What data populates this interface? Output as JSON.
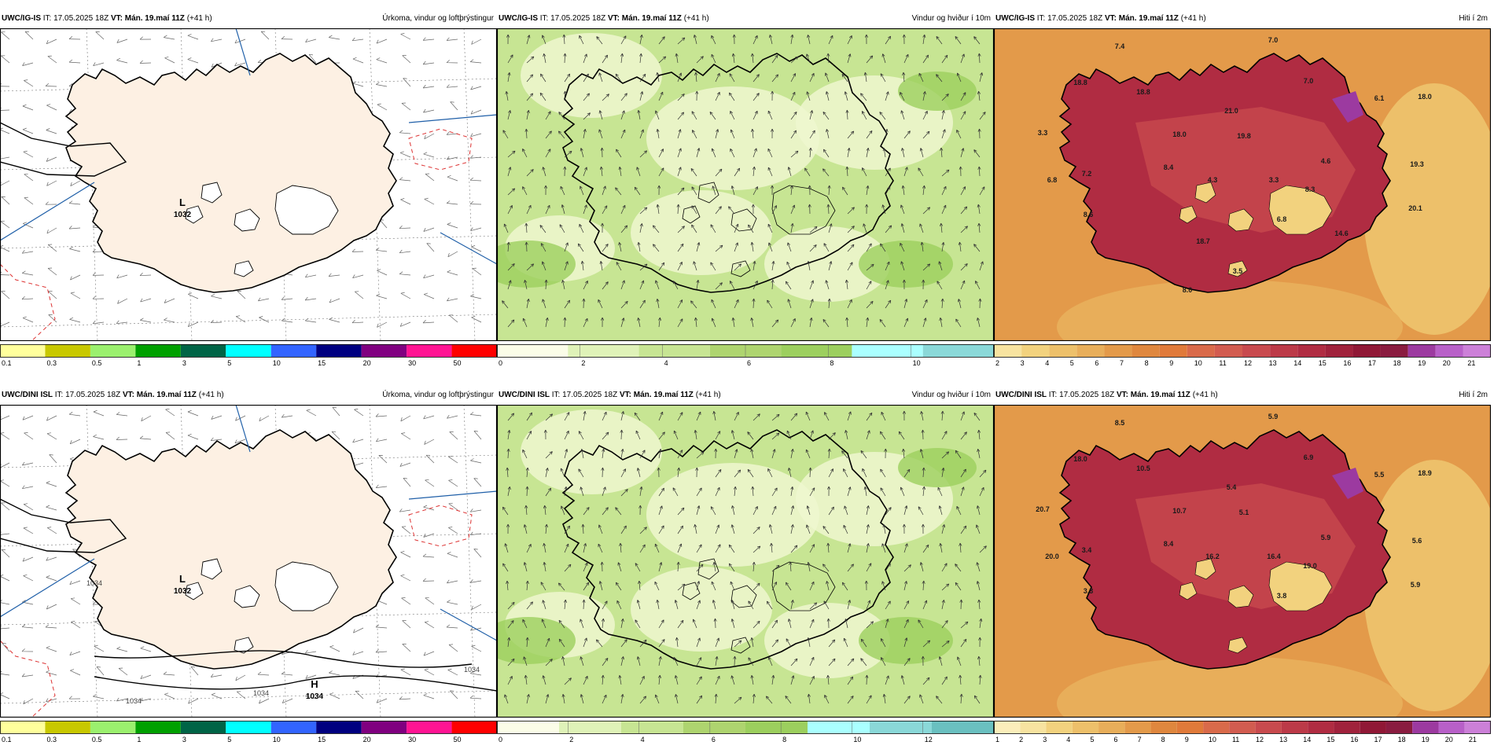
{
  "rows": [
    {
      "model": "UWC/IG-IS",
      "panels": [
        {
          "kind": "precip",
          "model": "UWC/IG-IS",
          "it_label": "IT: 17.05.2025 18Z",
          "vt_label": "VT: Mán. 19.maí 11Z",
          "lead": "(+41 h)",
          "field": "Úrkoma, vindur og loftþrýstingur",
          "pressure_center": {
            "letter": "L",
            "value": "1032"
          },
          "pressure_center2": null,
          "colorbar": {
            "colors": [
              "#ffff9c",
              "#c8c800",
              "#9bf06e",
              "#00a000",
              "#006446",
              "#00ffff",
              "#3264ff",
              "#000080",
              "#800080",
              "#ff1493",
              "#ff0000"
            ],
            "ticks": [
              "0.1",
              "0.3",
              "0.5",
              "1",
              "3",
              "5",
              "10",
              "15",
              "20",
              "30",
              "50"
            ]
          }
        },
        {
          "kind": "wind",
          "model": "UWC/IG-IS",
          "it_label": "IT: 17.05.2025 18Z",
          "vt_label": "VT: Mán. 19.maí 11Z",
          "lead": "(+41 h)",
          "field": "Vindur og hviður í 10m",
          "colorbar": {
            "colors": [
              "#fbfde8",
              "#dff2b8",
              "#c7e593",
              "#aed46f",
              "#9ccf5e",
              "#aaffff",
              "#8ad8d8"
            ],
            "ticks": [
              "0",
              "2",
              "4",
              "6",
              "8",
              "10"
            ],
            "tick_positions": [
              0,
              2,
              4,
              6,
              8,
              10
            ],
            "max": 12
          }
        },
        {
          "kind": "temp",
          "model": "UWC/IG-IS",
          "it_label": "IT: 17.05.2025 18Z",
          "vt_label": "VT: Mán. 19.maí 11Z",
          "lead": "(+41 h)",
          "field": "Hiti í 2m",
          "colorbar": {
            "colors": [
              "#f7e3a0",
              "#f2d27e",
              "#edc06a",
              "#e8ae5a",
              "#e39a4a",
              "#df873e",
              "#e07a3a",
              "#d96a4a",
              "#d25c50",
              "#c84a4e",
              "#bc3a48",
              "#b02c42",
              "#a0223c",
              "#901836",
              "#8a1c40",
              "#9c3aa0",
              "#b860c8",
              "#cc80d8"
            ],
            "ticks": [
              "2",
              "3",
              "4",
              "5",
              "6",
              "7",
              "8",
              "9",
              "10",
              "11",
              "12",
              "13",
              "14",
              "15",
              "16",
              "17",
              "18",
              "19",
              "20",
              "21"
            ]
          },
          "labels": [
            "7.0",
            "7.4",
            "18.8",
            "18.8",
            "7.0",
            "6.1",
            "18.0",
            "3.3",
            "18.0",
            "19.8",
            "21.0",
            "4.6",
            "19.3",
            "6.8",
            "7.2",
            "8.4",
            "4.3",
            "3.3",
            "8.3",
            "20.1",
            "8.6",
            "6.8",
            "14.6",
            "18.7",
            "3.5",
            "8.0"
          ]
        }
      ]
    },
    {
      "model": "UWC/DINI ISL",
      "panels": [
        {
          "kind": "precip",
          "model": "UWC/DINI ISL",
          "it_label": "IT: 17.05.2025 18Z",
          "vt_label": "VT: Mán. 19.maí 11Z",
          "lead": "(+41 h)",
          "field": "Úrkoma, vindur og loftþrýstingur",
          "pressure_center": {
            "letter": "L",
            "value": "1032"
          },
          "pressure_center2": {
            "letter": "H",
            "value": "1034"
          },
          "isobar_labels": [
            "1034",
            "1034",
            "1034",
            "1034"
          ],
          "colorbar": {
            "colors": [
              "#ffff9c",
              "#c8c800",
              "#9bf06e",
              "#00a000",
              "#006446",
              "#00ffff",
              "#3264ff",
              "#000080",
              "#800080",
              "#ff1493",
              "#ff0000"
            ],
            "ticks": [
              "0.1",
              "0.3",
              "0.5",
              "1",
              "3",
              "5",
              "10",
              "15",
              "20",
              "30",
              "50"
            ]
          }
        },
        {
          "kind": "wind",
          "model": "UWC/DINI ISL",
          "it_label": "IT: 17.05.2025 18Z",
          "vt_label": "VT: Mán. 19.maí 11Z",
          "lead": "(+41 h)",
          "field": "Vindur og hviður í 10m",
          "colorbar": {
            "colors": [
              "#fbfde8",
              "#dff2b8",
              "#c7e593",
              "#aed46f",
              "#9ccf5e",
              "#aaffff",
              "#8ad8d8",
              "#6ac0c0"
            ],
            "ticks": [
              "0",
              "2",
              "4",
              "6",
              "8",
              "10",
              "12"
            ],
            "tick_positions": [
              0,
              2,
              4,
              6,
              8,
              10,
              12
            ],
            "max": 14
          }
        },
        {
          "kind": "temp",
          "model": "UWC/DINI ISL",
          "it_label": "IT: 17.05.2025 18Z",
          "vt_label": "VT: Mán. 19.maí 11Z",
          "lead": "(+41 h)",
          "field": "Hiti í 2m",
          "colorbar": {
            "colors": [
              "#fbeebb",
              "#f7e3a0",
              "#f2d27e",
              "#edc06a",
              "#e8ae5a",
              "#e39a4a",
              "#df873e",
              "#e07a3a",
              "#d96a4a",
              "#d25c50",
              "#c84a4e",
              "#bc3a48",
              "#b02c42",
              "#a0223c",
              "#901836",
              "#8a1c40",
              "#9c3aa0",
              "#b860c8",
              "#cc80d8"
            ],
            "ticks": [
              "1",
              "2",
              "3",
              "4",
              "5",
              "6",
              "7",
              "8",
              "9",
              "10",
              "11",
              "12",
              "13",
              "14",
              "15",
              "16",
              "17",
              "18",
              "19",
              "20",
              "21"
            ]
          },
          "labels": [
            "5.9",
            "8.5",
            "18.0",
            "10.5",
            "6.9",
            "5.5",
            "18.9",
            "20.7",
            "10.7",
            "5.1",
            "5.4",
            "5.9",
            "5.6",
            "20.0",
            "3.4",
            "8.4",
            "16.2",
            "16.4",
            "19.0",
            "5.9",
            "3.3",
            "3.8"
          ]
        }
      ]
    }
  ]
}
